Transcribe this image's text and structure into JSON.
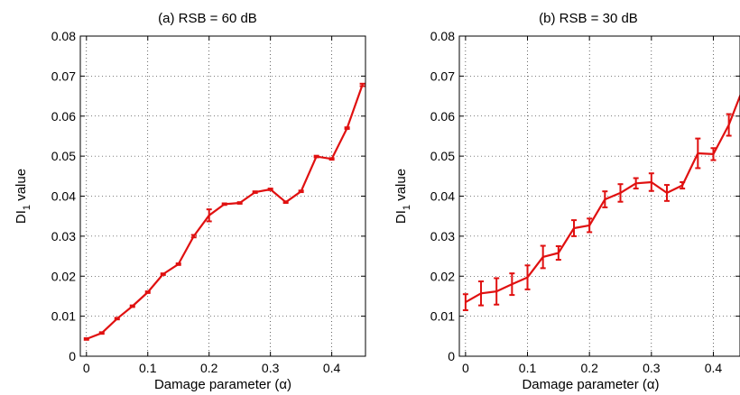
{
  "chart_data": [
    {
      "type": "line",
      "title": "(a) RSB = 60 dB",
      "xlabel": "Damage parameter (α)",
      "ylabel_main": "DI",
      "ylabel_sub": "1",
      "ylabel_rest": " value",
      "xlim": [
        -0.01,
        0.455
      ],
      "ylim": [
        0,
        0.08
      ],
      "xticks": [
        0,
        0.1,
        0.2,
        0.3,
        0.4
      ],
      "xtick_labels": [
        "0",
        "0.1",
        "0.2",
        "0.3",
        "0.4"
      ],
      "yticks": [
        0,
        0.01,
        0.02,
        0.03,
        0.04,
        0.05,
        0.06,
        0.07,
        0.08
      ],
      "ytick_labels": [
        "0",
        "0.01",
        "0.02",
        "0.03",
        "0.04",
        "0.05",
        "0.06",
        "0.07",
        "0.08"
      ],
      "grid": true,
      "color": "#e01010",
      "series": [
        {
          "x": [
            0,
            0.025,
            0.05,
            0.075,
            0.1,
            0.125,
            0.15,
            0.175,
            0.2,
            0.225,
            0.25,
            0.275,
            0.3,
            0.325,
            0.35,
            0.375,
            0.4,
            0.425,
            0.45
          ],
          "y": [
            0.0043,
            0.0058,
            0.0094,
            0.0125,
            0.016,
            0.0205,
            0.023,
            0.03,
            0.0352,
            0.038,
            0.0383,
            0.041,
            0.0417,
            0.0385,
            0.0412,
            0.0499,
            0.0493,
            0.057,
            0.0678
          ],
          "err": [
            0.0002,
            0.0002,
            0.0002,
            0.0002,
            0.0002,
            0.0002,
            0.0002,
            0.0003,
            0.0015,
            0.0002,
            0.0002,
            0.0002,
            0.0002,
            0.0002,
            0.0002,
            0.0002,
            0.0002,
            0.0002,
            0.0003
          ]
        }
      ]
    },
    {
      "type": "line",
      "title": "(b) RSB = 30 dB",
      "xlabel": "Damage parameter (α)",
      "ylabel_main": "DI",
      "ylabel_sub": "1",
      "ylabel_rest": " value",
      "xlim": [
        -0.01,
        0.443
      ],
      "ylim": [
        0,
        0.08
      ],
      "xticks": [
        0,
        0.1,
        0.2,
        0.3,
        0.4
      ],
      "xtick_labels": [
        "0",
        "0.1",
        "0.2",
        "0.3",
        "0.4"
      ],
      "yticks": [
        0,
        0.01,
        0.02,
        0.03,
        0.04,
        0.05,
        0.06,
        0.07,
        0.08
      ],
      "ytick_labels": [
        "0",
        "0.01",
        "0.02",
        "0.03",
        "0.04",
        "0.05",
        "0.06",
        "0.07",
        "0.08"
      ],
      "grid": true,
      "color": "#e01010",
      "series": [
        {
          "x": [
            0,
            0.025,
            0.05,
            0.075,
            0.1,
            0.125,
            0.15,
            0.175,
            0.2,
            0.225,
            0.25,
            0.275,
            0.3,
            0.325,
            0.35,
            0.375,
            0.4,
            0.425,
            0.45
          ],
          "y": [
            0.0135,
            0.0157,
            0.0162,
            0.018,
            0.0197,
            0.0248,
            0.0258,
            0.032,
            0.0327,
            0.0392,
            0.0408,
            0.0432,
            0.0435,
            0.0408,
            0.0427,
            0.0507,
            0.0505,
            0.0578,
            0.0678
          ],
          "err": [
            0.002,
            0.003,
            0.0033,
            0.0027,
            0.003,
            0.0028,
            0.0017,
            0.002,
            0.0017,
            0.002,
            0.0022,
            0.0013,
            0.0022,
            0.002,
            0.0008,
            0.0037,
            0.0015,
            0.0027,
            0.007
          ]
        }
      ]
    }
  ]
}
